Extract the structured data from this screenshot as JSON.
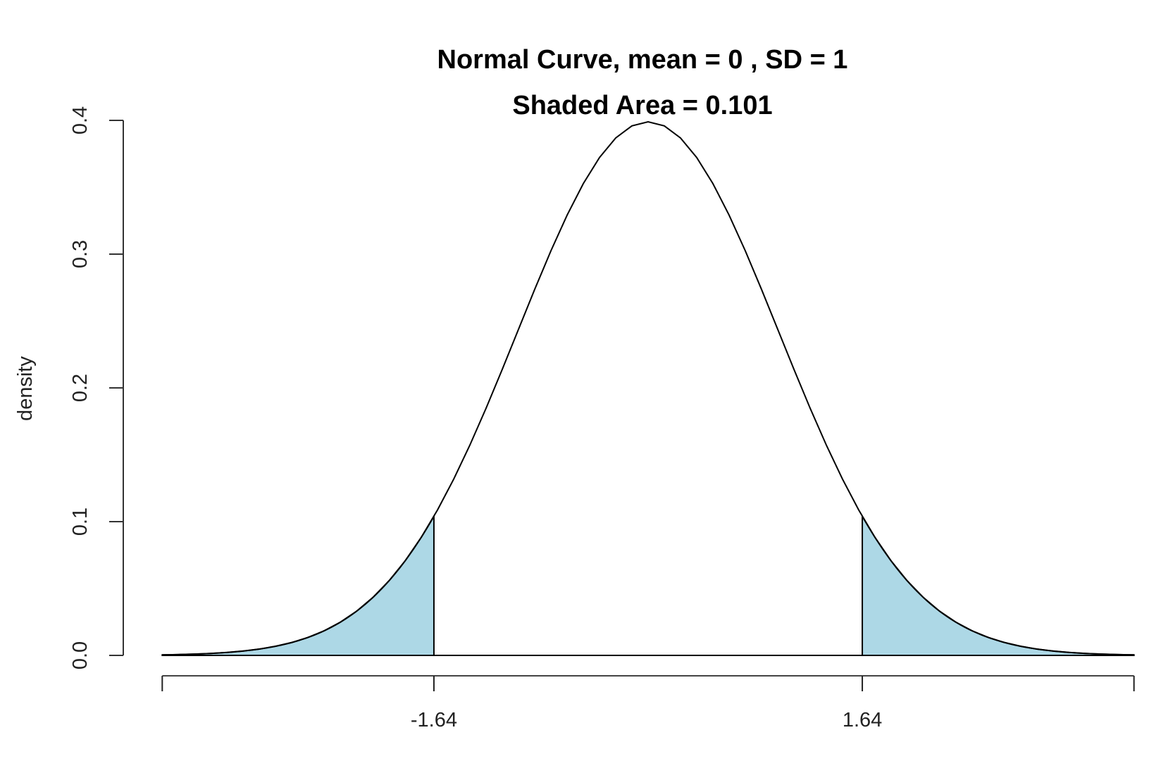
{
  "chart_data": {
    "type": "area",
    "title": "Normal Curve, mean =  0 , SD =  1",
    "subtitle": "Shaded Area =  0.101",
    "xlabel": "",
    "ylabel": "density",
    "mean": 0,
    "sd": 1,
    "shaded_area": 0.101,
    "xlim": [
      -3.72,
      3.72
    ],
    "ylim": [
      0,
      0.4
    ],
    "y_ticks": [
      "0.0",
      "0.1",
      "0.2",
      "0.3",
      "0.4"
    ],
    "y_tick_values": [
      0,
      0.1,
      0.2,
      0.3,
      0.4
    ],
    "x_ticks": [
      "-1.64",
      "1.64"
    ],
    "x_tick_values": [
      -1.64,
      1.64
    ],
    "shaded_regions": [
      {
        "from": -3.72,
        "to": -1.64
      },
      {
        "from": 1.64,
        "to": 3.72
      }
    ],
    "fill_color": "#add8e6",
    "line_color": "#000000",
    "grid": false
  }
}
